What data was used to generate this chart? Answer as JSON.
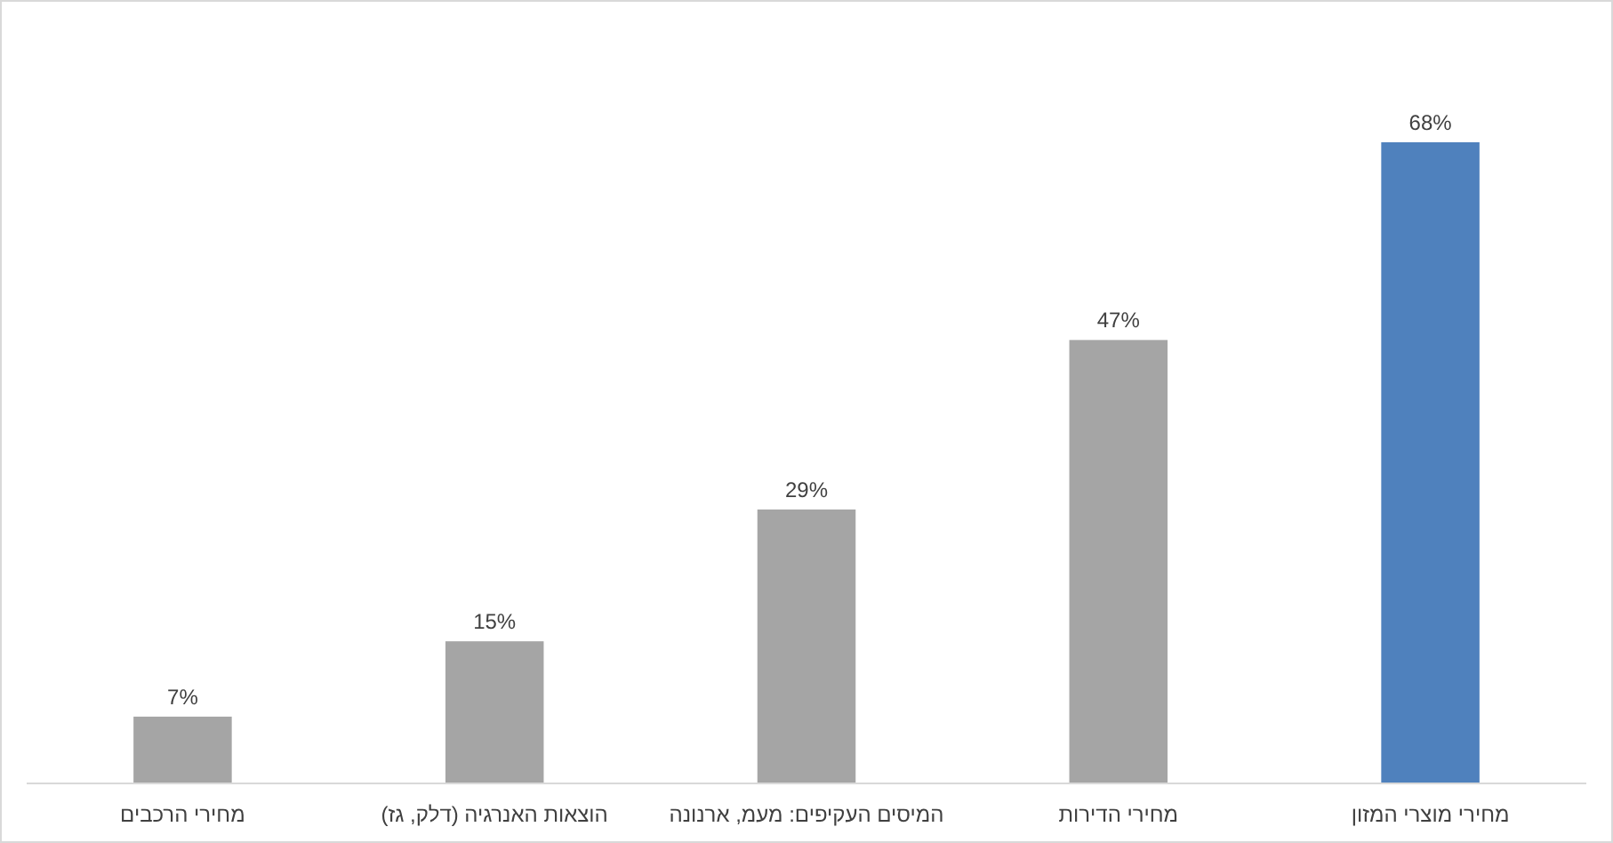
{
  "chart_data": {
    "type": "bar",
    "categories": [
      "מחירי הרכבים",
      "הוצאות האנרגיה (דלק, גז)",
      "המיסים העקיפים: מעמ, ארנונה",
      "מחירי הדירות",
      "מחירי מוצרי המזון"
    ],
    "values": [
      7,
      15,
      29,
      47,
      68
    ],
    "colors": [
      "#a5a5a5",
      "#a5a5a5",
      "#a5a5a5",
      "#a5a5a5",
      "#4f81bd"
    ],
    "value_labels": [
      "7%",
      "15%",
      "29%",
      "47%",
      "68%"
    ]
  }
}
